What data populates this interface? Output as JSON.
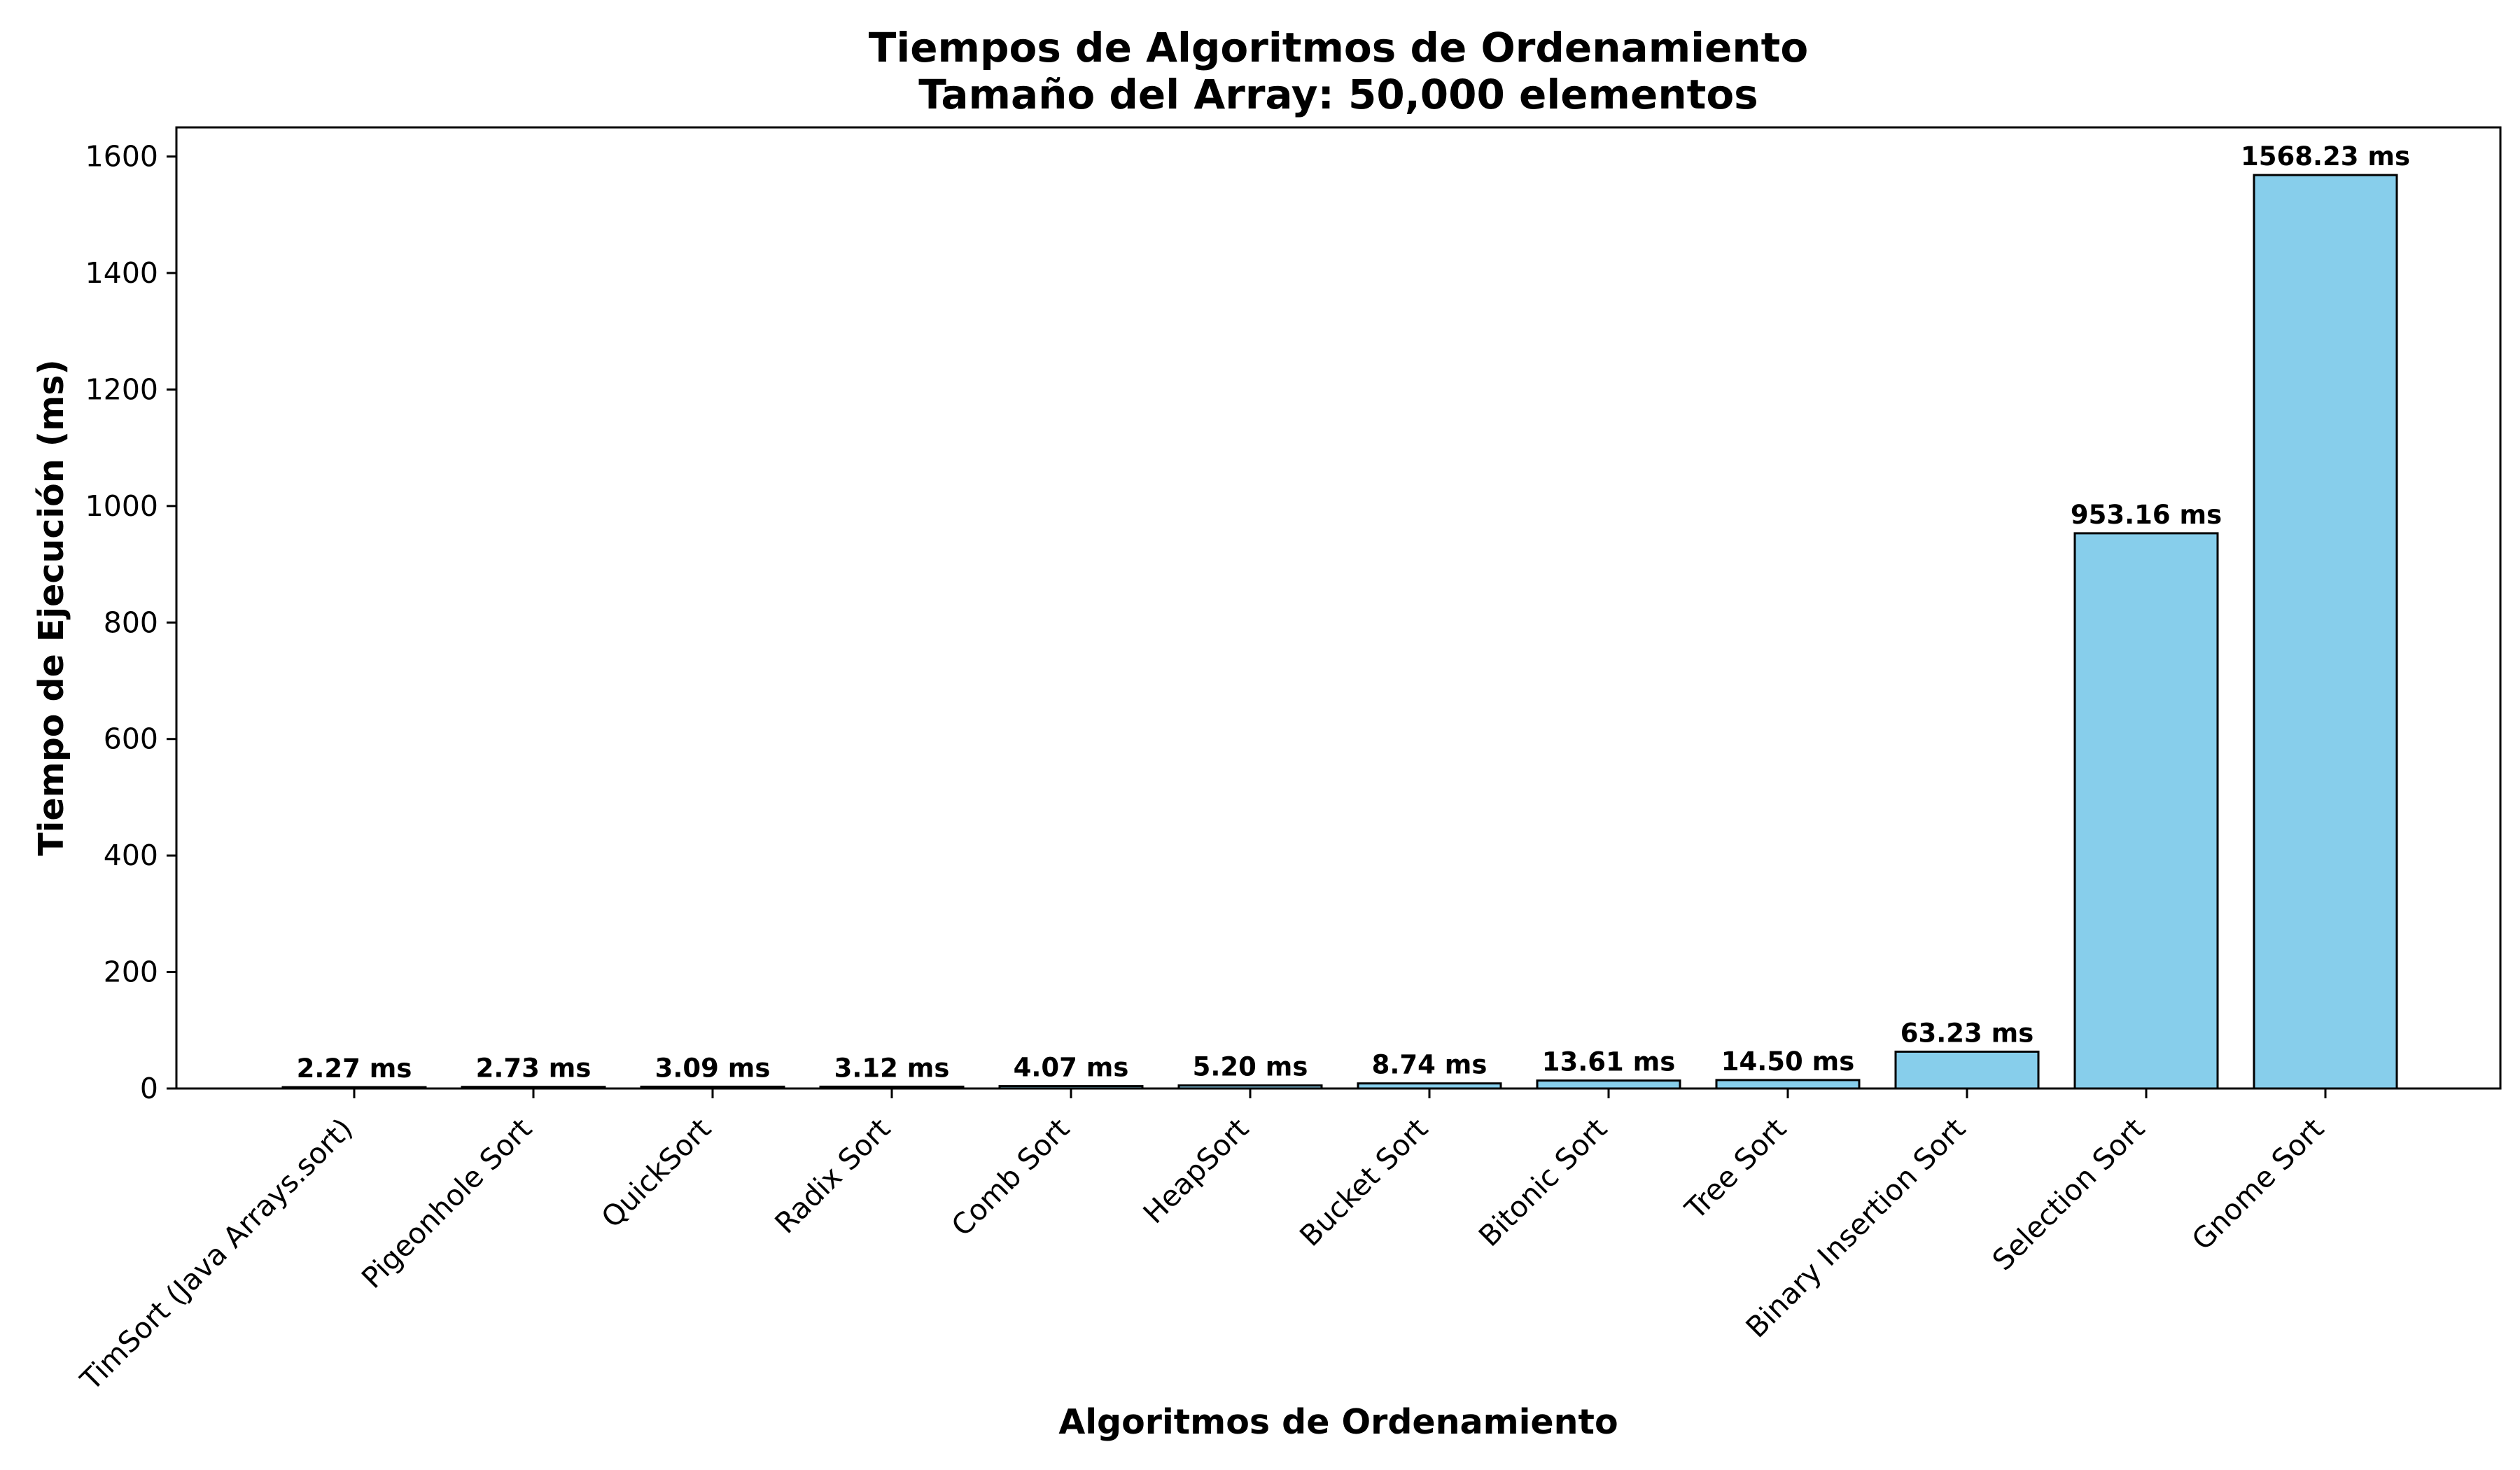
{
  "chart_data": {
    "type": "bar",
    "title": "Tiempos de Algoritmos de Ordenamiento",
    "subtitle": "Tamaño del Array: 50,000 elementos",
    "xlabel": "Algoritmos de Ordenamiento",
    "ylabel": "Tiempo de Ejecución (ms)",
    "ylim": [
      0,
      1650
    ],
    "yticks": [
      0,
      200,
      400,
      600,
      800,
      1000,
      1200,
      1400,
      1600
    ],
    "grid": false,
    "bar_color": "#87CEEB",
    "edge_color": "#000000",
    "categories": [
      "TimSort (Java Arrays.sort)",
      "Pigeonhole Sort",
      "QuickSort",
      "Radix Sort",
      "Comb Sort",
      "HeapSort",
      "Bucket Sort",
      "Bitonic Sort",
      "Tree Sort",
      "Binary Insertion Sort",
      "Selection Sort",
      "Gnome Sort"
    ],
    "values": [
      2.27,
      2.73,
      3.09,
      3.12,
      4.07,
      5.2,
      8.74,
      13.61,
      14.5,
      63.23,
      953.16,
      1568.23
    ],
    "data_labels": [
      "2.27 ms",
      "2.73 ms",
      "3.09 ms",
      "3.12 ms",
      "4.07 ms",
      "5.20 ms",
      "8.74 ms",
      "13.61 ms",
      "14.50 ms",
      "63.23 ms",
      "953.16 ms",
      "1568.23 ms"
    ]
  }
}
